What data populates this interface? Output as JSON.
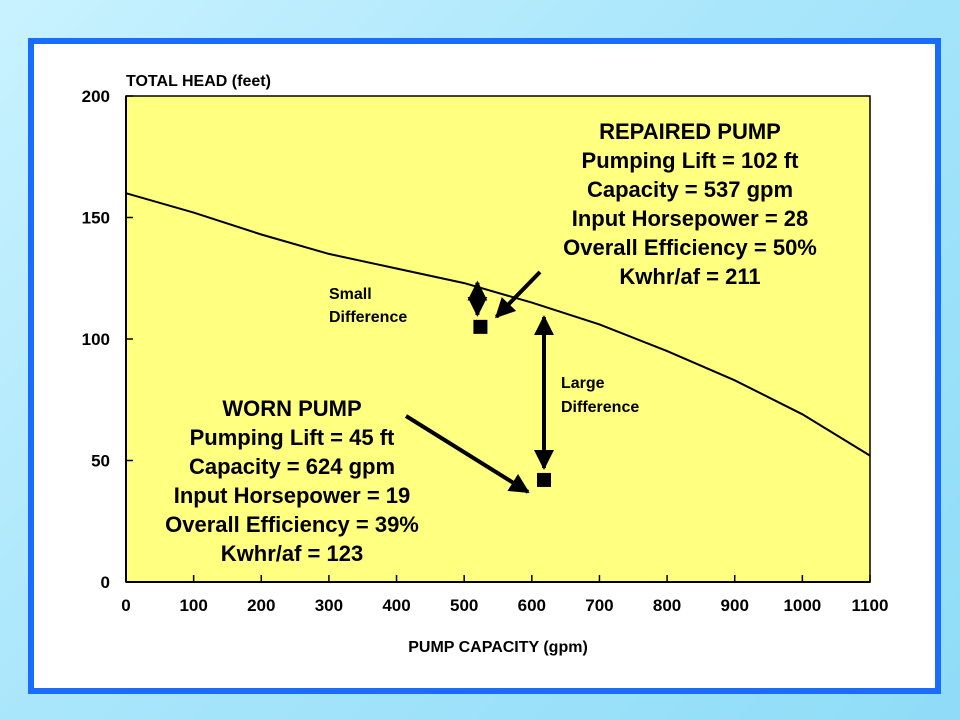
{
  "colors": {
    "background": "#a9e6fb",
    "frame_border": "#1a6cff",
    "plot_fill": "#ffff80",
    "marker": "#000000"
  },
  "chart_data": {
    "type": "line",
    "title": "",
    "xlabel": "PUMP CAPACITY (gpm)",
    "ylabel": "TOTAL HEAD (feet)",
    "xlim": [
      0,
      1100
    ],
    "ylim": [
      0,
      200
    ],
    "x_ticks": [
      0,
      100,
      200,
      300,
      400,
      500,
      600,
      700,
      800,
      900,
      1000,
      1100
    ],
    "y_ticks": [
      0,
      50,
      100,
      150,
      200
    ],
    "grid": false,
    "legend": "none",
    "series": [
      {
        "x": [
          0,
          100,
          200,
          300,
          400,
          500,
          600,
          700,
          800,
          900,
          1000,
          1100
        ],
        "y": [
          160,
          152,
          143,
          135,
          129,
          123,
          115,
          106,
          95,
          83,
          69,
          52
        ]
      }
    ],
    "points": [
      {
        "x": 524,
        "y": 105
      },
      {
        "x": 618,
        "y": 42
      }
    ],
    "annotations": {
      "repaired": [
        "REPAIRED PUMP",
        "Pumping Lift = 102 ft",
        "Capacity = 537 gpm",
        "Input Horsepower = 28",
        "Overall Efficiency = 50%",
        "Kwhr/af = 211"
      ],
      "worn": [
        "WORN PUMP",
        "Pumping Lift = 45 ft",
        "Capacity = 624 gpm",
        "Input Horsepower = 19",
        "Overall Efficiency = 39%",
        "Kwhr/af = 123"
      ],
      "small_difference": [
        "Small",
        "Difference"
      ],
      "large_difference": [
        "Large",
        "Difference"
      ]
    }
  }
}
